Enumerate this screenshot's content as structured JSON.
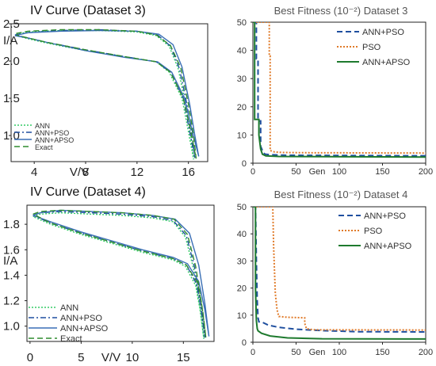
{
  "chart_data": [
    {
      "type": "line",
      "title": "IV Curve (Dataset 3)",
      "xlabel": "V/V",
      "ylabel": "I/A",
      "xticks": [
        "4",
        "8",
        "12",
        "16"
      ],
      "xtick_values": [
        4,
        8,
        12,
        16
      ],
      "yticks": [
        "2.5",
        "2.0",
        "1.5",
        "1.0"
      ],
      "ytick_values": [
        2.5,
        2.0,
        1.5,
        1.0
      ],
      "xlim": [
        2.2,
        17.5
      ],
      "ylim": [
        0.65,
        2.5
      ],
      "legend_position": "bottom-left",
      "series": [
        {
          "name": "ANN",
          "color": "#33cc66",
          "dash": "dotted",
          "x": [
            2.6,
            3.5,
            6,
            9,
            12,
            13.5,
            14.5,
            15.2,
            15.8,
            16.2,
            16.4,
            16.0,
            15.5,
            14.5,
            13.5,
            11,
            8,
            5,
            3.5,
            2.6
          ],
          "y": [
            2.36,
            2.39,
            2.41,
            2.41,
            2.39,
            2.34,
            2.2,
            1.9,
            1.4,
            0.98,
            0.68,
            1.05,
            1.5,
            1.85,
            1.99,
            2.06,
            2.14,
            2.24,
            2.3,
            2.34
          ]
        },
        {
          "name": "ANN+PSO",
          "color": "#1f4f9f",
          "dash": "dashdot",
          "x": [
            2.5,
            3.5,
            6,
            9,
            12,
            13.6,
            14.6,
            15.3,
            15.9,
            16.3,
            16.5,
            16.1,
            15.6,
            14.6,
            13.5,
            11,
            8,
            5,
            3.5,
            2.5
          ],
          "y": [
            2.35,
            2.38,
            2.41,
            2.42,
            2.4,
            2.35,
            2.2,
            1.9,
            1.4,
            0.98,
            0.7,
            1.05,
            1.5,
            1.85,
            1.99,
            2.06,
            2.15,
            2.25,
            2.31,
            2.35
          ]
        },
        {
          "name": "ANN+APSO",
          "color": "#3a6fb5",
          "dash": "solid",
          "x": [
            2.5,
            3.5,
            6,
            9,
            12,
            13.7,
            14.8,
            15.5,
            16.1,
            16.5,
            16.8,
            16.3,
            15.7,
            14.7,
            13.6,
            11,
            8,
            5,
            3.5,
            2.5
          ],
          "y": [
            2.34,
            2.38,
            2.4,
            2.41,
            2.4,
            2.36,
            2.22,
            1.92,
            1.42,
            1.0,
            0.72,
            1.06,
            1.5,
            1.85,
            1.99,
            2.05,
            2.14,
            2.25,
            2.31,
            2.34
          ]
        },
        {
          "name": "Exact",
          "color": "#2e8b2e",
          "dash": "dashed",
          "x": [
            2.6,
            3.5,
            6,
            9,
            12,
            13.5,
            14.6,
            15.4,
            16.0,
            16.4,
            16.6,
            16.2,
            15.6,
            14.6,
            13.5,
            11,
            8,
            5,
            3.5,
            2.6
          ],
          "y": [
            2.37,
            2.4,
            2.42,
            2.42,
            2.4,
            2.35,
            2.21,
            1.91,
            1.42,
            1.0,
            0.69,
            1.05,
            1.5,
            1.85,
            1.99,
            2.06,
            2.15,
            2.25,
            2.31,
            2.35
          ]
        }
      ]
    },
    {
      "type": "line",
      "title": "Best Fitness (10⁻²) Dataset 3",
      "xlabel": "Gen",
      "ylabel": "",
      "xticks": [
        "0",
        "50",
        "100",
        "150",
        "200"
      ],
      "xtick_values": [
        0,
        50,
        100,
        150,
        200
      ],
      "yticks": [
        "0",
        "10",
        "20",
        "30",
        "40",
        "50"
      ],
      "ytick_values": [
        0,
        10,
        20,
        30,
        40,
        50
      ],
      "xlim": [
        0,
        200
      ],
      "ylim": [
        0,
        50
      ],
      "legend_position": "top-right",
      "series": [
        {
          "name": "ANN+PSO",
          "color": "#1f4f9f",
          "dash": "dashed",
          "x": [
            0,
            4,
            4,
            6,
            6,
            9,
            9,
            12,
            14,
            20,
            40,
            200
          ],
          "y": [
            50,
            50,
            37,
            37,
            15,
            15,
            6,
            3.8,
            3.2,
            3.0,
            2.8,
            2.6
          ]
        },
        {
          "name": "PSO",
          "color": "#e07b2a",
          "dash": "dotted",
          "x": [
            0,
            19,
            19,
            20,
            20,
            25,
            35,
            60,
            200
          ],
          "y": [
            50,
            50,
            38,
            38,
            4.5,
            4.0,
            3.8,
            3.7,
            3.6
          ]
        },
        {
          "name": "ANN+APSO",
          "color": "#1e7a2e",
          "dash": "solid",
          "x": [
            0,
            2,
            2,
            7,
            7,
            9,
            11,
            15,
            30,
            200
          ],
          "y": [
            50,
            50,
            15.5,
            15.5,
            10,
            5,
            3.2,
            2.6,
            2.4,
            2.2
          ]
        }
      ]
    },
    {
      "type": "line",
      "title": "IV Curve (Dataset 4)",
      "xlabel": "V/V",
      "ylabel": "I/A",
      "xticks": [
        "0",
        "5",
        "10",
        "15"
      ],
      "xtick_values": [
        0,
        5,
        10,
        15
      ],
      "yticks": [
        "1.8",
        "1.6",
        "1.4",
        "1.2",
        "1.0"
      ],
      "ytick_values": [
        1.8,
        1.6,
        1.4,
        1.2,
        1.0
      ],
      "xlim": [
        -0.3,
        18
      ],
      "ylim": [
        0.88,
        1.95
      ],
      "legend_position": "bottom-left",
      "series": [
        {
          "name": "ANN",
          "color": "#33cc66",
          "dash": "dotted",
          "x": [
            0.3,
            1,
            3,
            6,
            9,
            12,
            14,
            15.2,
            16.0,
            16.6,
            17.0,
            16.7,
            16.2,
            15.2,
            14,
            11,
            8,
            5,
            2,
            0.3
          ],
          "y": [
            1.86,
            1.88,
            1.89,
            1.88,
            1.87,
            1.85,
            1.82,
            1.7,
            1.45,
            1.15,
            0.9,
            1.1,
            1.32,
            1.47,
            1.52,
            1.58,
            1.65,
            1.72,
            1.8,
            1.86
          ]
        },
        {
          "name": "ANN+PSO",
          "color": "#1f4f9f",
          "dash": "dashdot",
          "x": [
            0.3,
            1,
            3,
            6,
            9,
            12,
            14,
            15.3,
            16.1,
            16.7,
            17.1,
            16.8,
            16.3,
            15.3,
            14,
            11,
            8,
            5,
            2,
            0.3
          ],
          "y": [
            1.87,
            1.89,
            1.9,
            1.89,
            1.88,
            1.86,
            1.83,
            1.71,
            1.46,
            1.16,
            0.91,
            1.11,
            1.33,
            1.48,
            1.53,
            1.59,
            1.66,
            1.73,
            1.81,
            1.87
          ]
        },
        {
          "name": "ANN+APSO",
          "color": "#3a6fb5",
          "dash": "solid",
          "x": [
            0.3,
            1,
            3,
            6,
            9,
            12,
            14.2,
            15.6,
            16.5,
            17.1,
            17.5,
            17.1,
            16.5,
            15.4,
            14,
            11,
            8,
            5,
            2,
            0.3
          ],
          "y": [
            1.87,
            1.89,
            1.91,
            1.9,
            1.89,
            1.87,
            1.84,
            1.73,
            1.48,
            1.18,
            0.92,
            1.13,
            1.35,
            1.49,
            1.54,
            1.6,
            1.67,
            1.74,
            1.82,
            1.87
          ]
        },
        {
          "name": "Exact",
          "color": "#2e8b2e",
          "dash": "dashed",
          "x": [
            0.3,
            1,
            3,
            6,
            9,
            12,
            14.1,
            15.4,
            16.2,
            16.8,
            17.2,
            16.9,
            16.4,
            15.3,
            14,
            11,
            8,
            5,
            2,
            0.3
          ],
          "y": [
            1.88,
            1.9,
            1.91,
            1.9,
            1.89,
            1.87,
            1.84,
            1.72,
            1.47,
            1.17,
            0.91,
            1.12,
            1.34,
            1.48,
            1.53,
            1.59,
            1.66,
            1.73,
            1.81,
            1.88
          ]
        }
      ]
    },
    {
      "type": "line",
      "title": "Best Fitness (10⁻²) Dataset 4",
      "xlabel": "Gen",
      "ylabel": "",
      "xticks": [
        "0",
        "50",
        "100",
        "150",
        "200"
      ],
      "xtick_values": [
        0,
        50,
        100,
        150,
        200
      ],
      "yticks": [
        "0",
        "10",
        "20",
        "30",
        "40",
        "50"
      ],
      "ytick_values": [
        0,
        10,
        20,
        30,
        40,
        50
      ],
      "xlim": [
        0,
        200
      ],
      "ylim": [
        0,
        50
      ],
      "legend_position": "top-right",
      "series": [
        {
          "name": "ANN+PSO",
          "color": "#1f4f9f",
          "dash": "dashed",
          "x": [
            0,
            3,
            4,
            5,
            6,
            7,
            10,
            18,
            30,
            50,
            80,
            120,
            200
          ],
          "y": [
            50,
            50,
            30,
            15,
            9,
            7.5,
            7.5,
            6.3,
            5.5,
            4.8,
            4.3,
            3.9,
            3.8
          ]
        },
        {
          "name": "PSO",
          "color": "#e07b2a",
          "dash": "dotted",
          "x": [
            0,
            23,
            24,
            26,
            28,
            30,
            40,
            60,
            60,
            62,
            70,
            200
          ],
          "y": [
            50,
            50,
            35,
            18,
            12,
            9.5,
            9.2,
            9.0,
            7,
            5,
            4.6,
            4.5
          ]
        },
        {
          "name": "ANN+APSO",
          "color": "#1e7a2e",
          "dash": "solid",
          "x": [
            0,
            3,
            3,
            4,
            5,
            6,
            10,
            20,
            40,
            80,
            200
          ],
          "y": [
            50,
            50,
            20,
            8,
            5,
            4.2,
            3.3,
            2.3,
            1.6,
            1.3,
            1.2
          ]
        }
      ]
    }
  ]
}
